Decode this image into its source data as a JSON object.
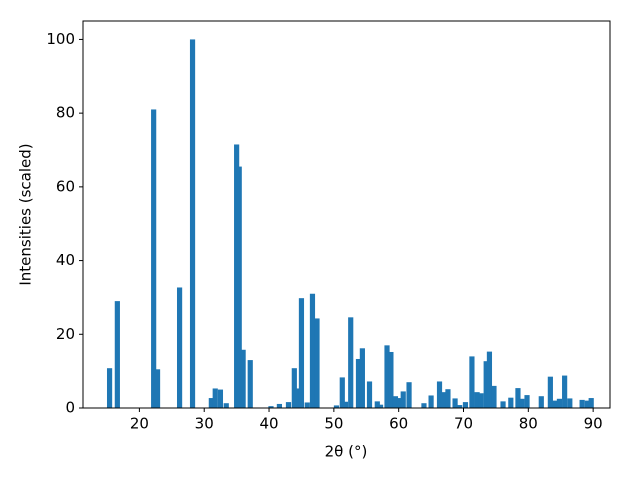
{
  "chart_data": {
    "type": "bar",
    "xlabel": "2θ (°)",
    "ylabel": "Intensities (scaled)",
    "color": "#1f77b4",
    "x": [
      15.4,
      16.6,
      22.2,
      22.8,
      26.2,
      28.2,
      31.1,
      31.7,
      32.5,
      33.4,
      35.0,
      35.4,
      36.0,
      37.1,
      40.3,
      41.6,
      43.0,
      43.9,
      44.4,
      45.0,
      45.9,
      46.7,
      47.4,
      50.4,
      51.3,
      51.8,
      52.6,
      53.8,
      54.4,
      55.5,
      56.7,
      57.2,
      58.2,
      58.8,
      59.5,
      60.1,
      60.7,
      61.6,
      63.9,
      65.0,
      66.3,
      66.9,
      67.6,
      68.7,
      69.4,
      70.3,
      71.3,
      72.1,
      72.7,
      73.5,
      74.0,
      74.7,
      76.1,
      77.3,
      78.4,
      79.0,
      79.8,
      82.0,
      83.4,
      84.1,
      84.8,
      85.6,
      86.4,
      88.3,
      89.1,
      89.7
    ],
    "values": [
      10.8,
      29,
      81,
      10.5,
      32.7,
      100,
      2.7,
      5.3,
      5,
      1.3,
      71.5,
      65.5,
      15.8,
      13,
      0.5,
      1.1,
      1.6,
      10.8,
      5.3,
      29.8,
      1.5,
      31,
      24.3,
      0.7,
      8.3,
      1.7,
      24.6,
      13.3,
      16.2,
      7.2,
      1.8,
      0.9,
      17,
      15.2,
      3.2,
      2.7,
      4.5,
      7,
      1.3,
      3.4,
      7.2,
      4.3,
      5.1,
      2.6,
      0.8,
      1.6,
      14,
      4.3,
      4,
      12.7,
      15.3,
      6,
      1.8,
      2.8,
      5.4,
      2.5,
      3.5,
      3.2,
      8.5,
      2,
      2.5,
      8.8,
      2.6,
      2.2,
      2,
      2.7
    ],
    "xlim": [
      11.3,
      92.6
    ],
    "xticks": [
      20,
      30,
      40,
      50,
      60,
      70,
      80,
      90
    ],
    "ylim": [
      0,
      105
    ],
    "yticks": [
      0,
      20,
      40,
      60,
      80,
      100
    ]
  }
}
